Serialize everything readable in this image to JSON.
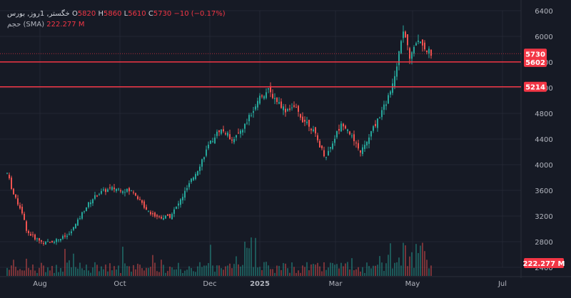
{
  "legend": {
    "symbol": "خگستر, 1روز, بورس",
    "o_label": "O",
    "o_value": "5820",
    "h_label": "H",
    "h_value": "5860",
    "l_label": "L",
    "l_value": "5610",
    "c_label": "C",
    "c_value": "5730",
    "change": "−10 (−0.17%)",
    "volume_label": "حجم (SMA)",
    "volume_value": "222.277 M"
  },
  "colors": {
    "background": "#161a25",
    "up": "#26a69a",
    "down": "#ef5350",
    "hline": "#f23645",
    "grid": "#232734",
    "axis_text": "#b2b5be"
  },
  "chart_data": {
    "type": "candlestick",
    "title": "",
    "xlabel": "",
    "ylabel": "",
    "ylim": [
      2400,
      6400
    ],
    "y_ticks": [
      2400,
      2800,
      3200,
      3600,
      4000,
      4400,
      4800,
      5200,
      5600,
      6000,
      6400
    ],
    "x_ticks": [
      "Aug",
      "Oct",
      "Dec",
      "2025",
      "Mar",
      "May",
      "Jul"
    ],
    "grid": true,
    "horizontal_lines": [
      5602,
      5214
    ],
    "price_tags": [
      {
        "text": "5730",
        "value": 5730
      },
      {
        "text": "5602",
        "value": 5602
      },
      {
        "text": "5214",
        "value": 5214
      }
    ],
    "volume_tag": "222.277 M",
    "price_path": [
      [
        0,
        3600
      ],
      [
        6,
        4000
      ],
      [
        12,
        3800
      ],
      [
        20,
        3500
      ],
      [
        30,
        3300
      ],
      [
        38,
        2950
      ],
      [
        50,
        2850
      ],
      [
        62,
        2780
      ],
      [
        72,
        2800
      ],
      [
        84,
        2850
      ],
      [
        96,
        2900
      ],
      [
        108,
        3100
      ],
      [
        118,
        3300
      ],
      [
        128,
        3450
      ],
      [
        138,
        3550
      ],
      [
        148,
        3600
      ],
      [
        158,
        3630
      ],
      [
        168,
        3620
      ],
      [
        178,
        3600
      ],
      [
        188,
        3580
      ],
      [
        198,
        3400
      ],
      [
        208,
        3280
      ],
      [
        218,
        3200
      ],
      [
        228,
        3180
      ],
      [
        238,
        3200
      ],
      [
        248,
        3350
      ],
      [
        258,
        3550
      ],
      [
        268,
        3750
      ],
      [
        278,
        3950
      ],
      [
        288,
        4200
      ],
      [
        298,
        4400
      ],
      [
        308,
        4550
      ],
      [
        316,
        4500
      ],
      [
        324,
        4400
      ],
      [
        332,
        4450
      ],
      [
        342,
        4600
      ],
      [
        352,
        4800
      ],
      [
        360,
        5000
      ],
      [
        368,
        5100
      ],
      [
        376,
        5150
      ],
      [
        384,
        5050
      ],
      [
        392,
        4950
      ],
      [
        400,
        4850
      ],
      [
        408,
        4900
      ],
      [
        416,
        4850
      ],
      [
        424,
        4700
      ],
      [
        432,
        4650
      ],
      [
        440,
        4500
      ],
      [
        448,
        4300
      ],
      [
        456,
        4120
      ],
      [
        464,
        4300
      ],
      [
        472,
        4500
      ],
      [
        480,
        4650
      ],
      [
        488,
        4550
      ],
      [
        496,
        4350
      ],
      [
        504,
        4200
      ],
      [
        512,
        4300
      ],
      [
        520,
        4500
      ],
      [
        528,
        4680
      ],
      [
        536,
        4850
      ],
      [
        544,
        5050
      ],
      [
        550,
        5300
      ],
      [
        556,
        5550
      ],
      [
        560,
        5900
      ],
      [
        564,
        6050
      ],
      [
        568,
        5950
      ],
      [
        574,
        5700
      ],
      [
        580,
        5850
      ],
      [
        586,
        5950
      ],
      [
        592,
        5900
      ],
      [
        598,
        5800
      ],
      [
        604,
        5730
      ]
    ]
  }
}
